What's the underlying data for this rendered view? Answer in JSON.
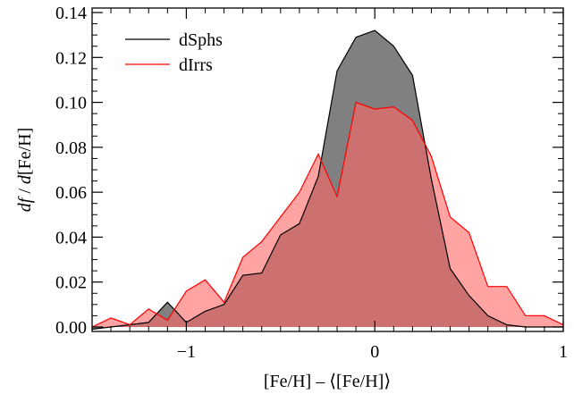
{
  "chart_data": {
    "type": "area",
    "xlabel": "[Fe/H] – ⟨[Fe/H]⟩",
    "ylabel_parts": [
      "df",
      " / ",
      "d",
      "[Fe/H]"
    ],
    "xlim": [
      -1.5,
      1.0
    ],
    "ylim": [
      -0.002,
      0.142
    ],
    "x_ticks": [
      -1,
      0,
      1
    ],
    "x_tick_labels": [
      "−1",
      "0",
      "1"
    ],
    "y_ticks": [
      0.0,
      0.02,
      0.04,
      0.06,
      0.08,
      0.1,
      0.12,
      0.14
    ],
    "y_tick_labels": [
      "0.00",
      "0.02",
      "0.04",
      "0.06",
      "0.08",
      "0.10",
      "0.12",
      "0.14"
    ],
    "legend_position": "top-left",
    "series": [
      {
        "name": "dSphs",
        "line_color": "#000000",
        "fill_color": "#808080",
        "x": [
          -1.5,
          -1.3,
          -1.2,
          -1.1,
          -1.0,
          -0.9,
          -0.8,
          -0.7,
          -0.6,
          -0.5,
          -0.4,
          -0.3,
          -0.2,
          -0.1,
          0.0,
          0.1,
          0.2,
          0.3,
          0.4,
          0.5,
          0.6,
          0.7,
          0.8,
          0.9,
          1.0
        ],
        "values": [
          -0.001,
          0.001,
          0.002,
          0.011,
          0.002,
          0.007,
          0.01,
          0.023,
          0.024,
          0.041,
          0.046,
          0.067,
          0.114,
          0.129,
          0.132,
          0.125,
          0.112,
          0.066,
          0.026,
          0.014,
          0.005,
          0.001,
          0.0,
          0.0,
          0.0
        ]
      },
      {
        "name": "dIrrs",
        "line_color": "#ff0000",
        "fill_color": "#ff6666",
        "x": [
          -1.5,
          -1.4,
          -1.3,
          -1.2,
          -1.1,
          -1.0,
          -0.9,
          -0.8,
          -0.7,
          -0.6,
          -0.5,
          -0.4,
          -0.3,
          -0.2,
          -0.1,
          0.0,
          0.1,
          0.2,
          0.3,
          0.4,
          0.5,
          0.6,
          0.7,
          0.8,
          0.9,
          1.0
        ],
        "values": [
          0.0,
          0.004,
          0.001,
          0.008,
          0.003,
          0.016,
          0.021,
          0.011,
          0.031,
          0.038,
          0.049,
          0.06,
          0.077,
          0.058,
          0.1,
          0.097,
          0.098,
          0.092,
          0.076,
          0.049,
          0.042,
          0.018,
          0.018,
          0.005,
          0.005,
          0.001
        ]
      }
    ]
  }
}
